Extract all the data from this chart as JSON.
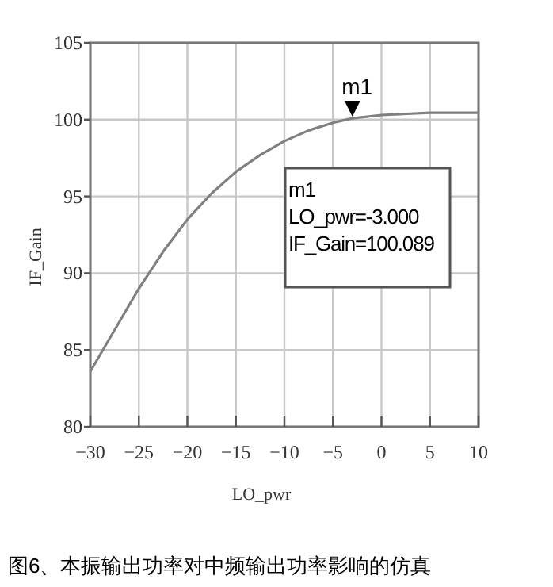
{
  "chart_data": {
    "type": "line",
    "xlabel": "LO_pwr",
    "ylabel": "IF_Gain",
    "x": [
      -30,
      -27.5,
      -25,
      -22.5,
      -20,
      -17.5,
      -15,
      -12.5,
      -10,
      -7.5,
      -5,
      -3,
      0,
      5,
      10
    ],
    "series": [
      {
        "color": "#808080",
        "values": [
          83.6,
          86.3,
          89.0,
          91.4,
          93.5,
          95.2,
          96.6,
          97.7,
          98.6,
          99.3,
          99.8,
          100.089,
          100.3,
          100.45,
          100.45
        ]
      }
    ],
    "xlim": [
      -30,
      10
    ],
    "xticks": [
      -30,
      -25,
      -20,
      -15,
      -10,
      -5,
      0,
      5,
      10
    ],
    "ylim": [
      80,
      105
    ],
    "yticks": [
      80,
      85,
      90,
      95,
      100,
      105
    ],
    "grid": true,
    "marker": "none",
    "line_style": "solid",
    "annotations": [
      {
        "text": "m1",
        "x": -3,
        "y": 100.089
      },
      "m1\nLO_pwr=-3.000\nIF_Gain=100.089",
      "图6、本振输出功率对中频输出功率影响的仿真"
    ]
  }
}
